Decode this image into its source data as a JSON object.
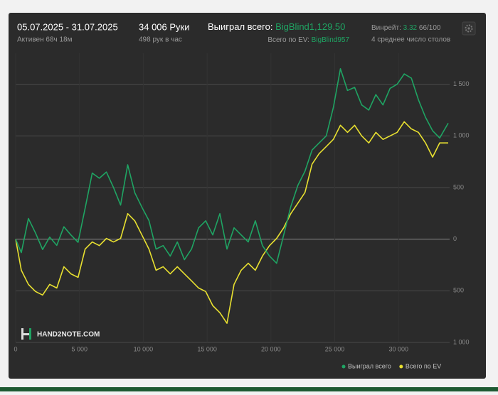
{
  "header": {
    "date_range": "05.07.2025 - 31.07.2025",
    "active": "Активен 68ч 18м",
    "hands": "34 006 Руки",
    "hands_per_hour": "498 рук в час",
    "won_label": "Выиграл всего:",
    "won_value": "BigBlind1,129.50",
    "ev_label": "Всего по EV:",
    "ev_value": "BigBlind957",
    "winrate_label": "Винрейт:",
    "winrate_value": "3.32",
    "winrate_ratio": "66/100",
    "tables": "4 среднее число столов"
  },
  "watermark": "HAND2NOTE.COM",
  "chart_data": {
    "type": "line",
    "x": [
      0,
      444,
      1000,
      1556,
      2111,
      2667,
      3222,
      3778,
      4333,
      4889,
      5444,
      6000,
      6556,
      7111,
      7667,
      8222,
      8778,
      9333,
      9889,
      10444,
      11000,
      11556,
      12111,
      12667,
      13222,
      13778,
      14333,
      14889,
      15444,
      16000,
      16556,
      17111,
      17667,
      18222,
      18778,
      19333,
      19889,
      20444,
      21000,
      21556,
      22111,
      22667,
      23222,
      23778,
      24333,
      24889,
      25444,
      26000,
      26556,
      27111,
      27667,
      28222,
      28778,
      29333,
      29889,
      30444,
      31000,
      31556,
      32111,
      32667,
      33222,
      33889
    ],
    "series": [
      {
        "name": "Выиграл всего",
        "color": "#1fa463",
        "values": [
          0,
          -130,
          200,
          60,
          -100,
          20,
          -60,
          120,
          40,
          -30,
          300,
          640,
          590,
          650,
          500,
          330,
          720,
          450,
          310,
          180,
          -96,
          -62,
          -164,
          -27,
          -199,
          -96,
          110,
          178,
          41,
          247,
          -96,
          110,
          41,
          -27,
          178,
          -62,
          -164,
          -233,
          41,
          315,
          521,
          658,
          863,
          932,
          1000,
          1274,
          1650,
          1440,
          1470,
          1300,
          1250,
          1400,
          1300,
          1460,
          1500,
          1600,
          1560,
          1350,
          1180,
          1050,
          980,
          1123
        ]
      },
      {
        "name": "Всего по EV",
        "color": "#e8e030",
        "values": [
          0,
          -301,
          -438,
          -507,
          -541,
          -438,
          -473,
          -267,
          -336,
          -370,
          -96,
          -27,
          -62,
          7,
          -27,
          7,
          247,
          178,
          41,
          -96,
          -301,
          -267,
          -336,
          -267,
          -336,
          -404,
          -473,
          -507,
          -644,
          -712,
          -815,
          -438,
          -301,
          -233,
          -301,
          -164,
          -62,
          7,
          110,
          247,
          349,
          452,
          726,
          829,
          897,
          966,
          1103,
          1034,
          1103,
          1000,
          932,
          1034,
          966,
          1000,
          1034,
          1137,
          1068,
          1034,
          932,
          795,
          932,
          932
        ]
      }
    ],
    "xlim": [
      0,
      34000
    ],
    "xticks": [
      0,
      {
        "value": 5000,
        "label": "5 000"
      },
      {
        "value": 10000,
        "label": "10 000"
      },
      {
        "value": 15000,
        "label": "15 000"
      },
      {
        "value": 20000,
        "label": "20 000"
      },
      {
        "value": 25000,
        "label": "25 000"
      },
      {
        "value": 30000,
        "label": "30 000"
      }
    ],
    "ylim": [
      -1000,
      1800
    ],
    "yticks": [
      {
        "value": 1500,
        "label": "1 500"
      },
      {
        "value": 1000,
        "label": "1 000"
      },
      500,
      0,
      {
        "value": -500,
        "label": "500"
      },
      {
        "value": -1000,
        "label": "1 000"
      }
    ],
    "grid": true,
    "legend": "bottom-right"
  }
}
